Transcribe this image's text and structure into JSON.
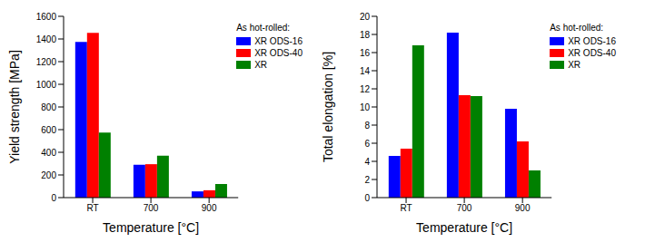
{
  "chart_data": [
    {
      "type": "bar",
      "y_label": "Yield strength [MPa]",
      "x_label": "Temperature [°C]",
      "categories": [
        "RT",
        "700",
        "900"
      ],
      "series": [
        {
          "name": "XR ODS-16",
          "color": "#0000ff",
          "values": [
            1375,
            290,
            55
          ]
        },
        {
          "name": "XR ODS-40",
          "color": "#ff0000",
          "values": [
            1455,
            295,
            65
          ]
        },
        {
          "name": "XR",
          "color": "#008000",
          "values": [
            575,
            370,
            120
          ]
        }
      ],
      "ylim": [
        0,
        1600
      ],
      "yticks": [
        0,
        200,
        400,
        600,
        800,
        1000,
        1200,
        1400,
        1600
      ],
      "legend": "top-right",
      "annotations": [
        "As hot-rolled:"
      ]
    },
    {
      "type": "bar",
      "y_label": "Total elongation [%]",
      "x_label": "Temperature [°C]",
      "categories": [
        "RT",
        "700",
        "900"
      ],
      "series": [
        {
          "name": "XR ODS-16",
          "color": "#0000ff",
          "values": [
            4.6,
            18.2,
            9.8
          ]
        },
        {
          "name": "XR ODS-40",
          "color": "#ff0000",
          "values": [
            5.4,
            11.3,
            6.2
          ]
        },
        {
          "name": "XR",
          "color": "#008000",
          "values": [
            16.8,
            11.2,
            3.0
          ]
        }
      ],
      "ylim": [
        0,
        20
      ],
      "yticks": [
        0,
        2,
        4,
        6,
        8,
        10,
        12,
        14,
        16,
        18,
        20
      ],
      "legend": "top-right",
      "annotations": [
        "As hot-rolled:"
      ]
    }
  ]
}
